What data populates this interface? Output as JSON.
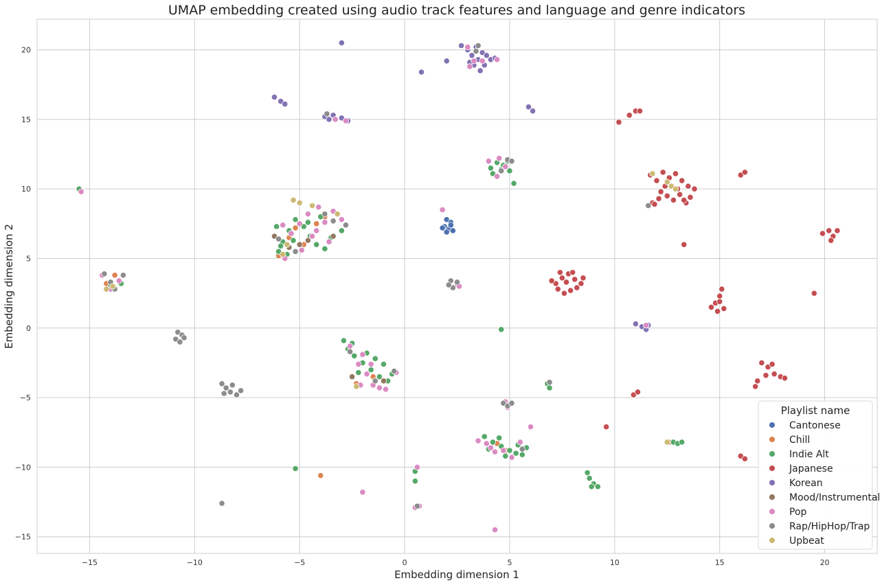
{
  "chart_data": {
    "type": "scatter",
    "title": "UMAP embedding created using audio track features and language and genre indicators",
    "xlabel": "Embedding dimension 1",
    "ylabel": "Embedding dimension 2",
    "xlim": [
      -17.5,
      22.5
    ],
    "ylim": [
      -16.2,
      22.2
    ],
    "xticks": [
      -15,
      -10,
      -5,
      0,
      5,
      10,
      15,
      20
    ],
    "yticks": [
      -15,
      -10,
      -5,
      0,
      5,
      10,
      15,
      20
    ],
    "xtick_labels": [
      "−15",
      "−10",
      "−5",
      "0",
      "5",
      "10",
      "15",
      "20"
    ],
    "ytick_labels": [
      "−15",
      "−10",
      "−5",
      "0",
      "5",
      "10",
      "15",
      "20"
    ],
    "grid": true,
    "legend": {
      "title": "Playlist name",
      "position": "lower-right"
    },
    "series": [
      {
        "name": "Cantonese",
        "color": "#4c72b0",
        "points": [
          [
            2.0,
            7.8
          ],
          [
            2.2,
            7.6
          ],
          [
            1.9,
            7.3
          ],
          [
            2.1,
            7.1
          ],
          [
            2.3,
            7.0
          ],
          [
            2.0,
            6.9
          ],
          [
            2.2,
            7.4
          ],
          [
            1.8,
            7.2
          ]
        ]
      },
      {
        "name": "Chill",
        "color": "#dd8452",
        "points": [
          [
            -5.5,
            6.5
          ],
          [
            -4.8,
            6.0
          ],
          [
            -5.2,
            7.2
          ],
          [
            -4.2,
            7.5
          ],
          [
            -3.8,
            8.0
          ],
          [
            -6.0,
            5.2
          ],
          [
            -13.8,
            3.8
          ],
          [
            -14.2,
            3.2
          ],
          [
            -4.0,
            -10.6
          ],
          [
            -2.3,
            -4.0
          ],
          [
            -1.5,
            -3.5
          ],
          [
            4.8,
            -8.8
          ],
          [
            4.4,
            -8.3
          ],
          [
            12.6,
            -8.2
          ]
        ]
      },
      {
        "name": "Indie Alt",
        "color": "#55a868",
        "points": [
          [
            -15.5,
            10.0
          ],
          [
            -6.0,
            5.5
          ],
          [
            -5.8,
            6.2
          ],
          [
            -5.5,
            7.0
          ],
          [
            -5.2,
            7.8
          ],
          [
            -4.8,
            7.3
          ],
          [
            -4.5,
            6.6
          ],
          [
            -4.2,
            6.0
          ],
          [
            -3.8,
            5.7
          ],
          [
            -3.5,
            6.5
          ],
          [
            -3.0,
            7.0
          ],
          [
            -5.9,
            5.9
          ],
          [
            -5.6,
            5.3
          ],
          [
            -4.6,
            7.6
          ],
          [
            -4.0,
            8.0
          ],
          [
            -6.1,
            7.3
          ],
          [
            -5.3,
            6.3
          ],
          [
            -2.9,
            -0.9
          ],
          [
            -2.7,
            -1.5
          ],
          [
            -2.4,
            -2.0
          ],
          [
            -2.0,
            -2.5
          ],
          [
            -1.6,
            -3.0
          ],
          [
            -1.2,
            -3.5
          ],
          [
            -0.8,
            -3.8
          ],
          [
            -1.8,
            -1.8
          ],
          [
            -1.4,
            -2.2
          ],
          [
            -2.2,
            -3.2
          ],
          [
            -1.0,
            -2.6
          ],
          [
            -0.6,
            -3.3
          ],
          [
            -2.5,
            -1.1
          ],
          [
            3.8,
            -7.8
          ],
          [
            4.2,
            -8.2
          ],
          [
            4.6,
            -8.5
          ],
          [
            5.0,
            -8.8
          ],
          [
            5.4,
            -8.4
          ],
          [
            5.8,
            -8.6
          ],
          [
            4.0,
            -8.7
          ],
          [
            4.8,
            -9.2
          ],
          [
            5.3,
            -9.0
          ],
          [
            4.5,
            -7.9
          ],
          [
            5.6,
            -9.1
          ],
          [
            4.1,
            11.5
          ],
          [
            4.4,
            11.9
          ],
          [
            4.6,
            11.4
          ],
          [
            4.9,
            12.0
          ],
          [
            4.2,
            11.1
          ],
          [
            4.7,
            11.7
          ],
          [
            5.0,
            11.3
          ],
          [
            5.2,
            10.4
          ],
          [
            4.6,
            -0.1
          ],
          [
            6.8,
            -4.0
          ],
          [
            6.9,
            -4.3
          ],
          [
            8.7,
            -10.4
          ],
          [
            8.8,
            -10.8
          ],
          [
            9.0,
            -11.2
          ],
          [
            8.9,
            -11.4
          ],
          [
            9.2,
            -11.4
          ],
          [
            12.8,
            -8.2
          ],
          [
            13.0,
            -8.3
          ],
          [
            13.2,
            -8.2
          ],
          [
            -5.2,
            -10.1
          ],
          [
            0.5,
            -10.3
          ],
          [
            0.5,
            -11.0
          ],
          [
            -14.0,
            3.0
          ],
          [
            -13.5,
            3.2
          ]
        ]
      },
      {
        "name": "Japanese",
        "color": "#c44e52",
        "points": [
          [
            11.7,
            11.0
          ],
          [
            12.0,
            10.6
          ],
          [
            12.3,
            11.2
          ],
          [
            12.6,
            10.8
          ],
          [
            12.9,
            11.1
          ],
          [
            13.2,
            10.6
          ],
          [
            13.5,
            10.2
          ],
          [
            13.8,
            10.0
          ],
          [
            12.2,
            9.8
          ],
          [
            12.5,
            9.5
          ],
          [
            12.8,
            9.2
          ],
          [
            13.1,
            9.6
          ],
          [
            13.4,
            9.0
          ],
          [
            11.8,
            9.0
          ],
          [
            12.1,
            9.3
          ],
          [
            13.6,
            9.4
          ],
          [
            12.4,
            10.2
          ],
          [
            13.0,
            10.0
          ],
          [
            11.9,
            8.9
          ],
          [
            13.3,
            9.2
          ],
          [
            7.2,
            3.2
          ],
          [
            7.5,
            3.6
          ],
          [
            7.8,
            3.9
          ],
          [
            8.1,
            3.5
          ],
          [
            8.4,
            3.2
          ],
          [
            7.3,
            2.8
          ],
          [
            7.6,
            2.5
          ],
          [
            7.9,
            2.7
          ],
          [
            8.2,
            2.9
          ],
          [
            7.0,
            3.4
          ],
          [
            8.5,
            3.6
          ],
          [
            7.7,
            3.3
          ],
          [
            8.0,
            4.0
          ],
          [
            7.4,
            4.0
          ],
          [
            14.6,
            1.5
          ],
          [
            14.8,
            1.8
          ],
          [
            15.0,
            2.3
          ],
          [
            15.1,
            2.8
          ],
          [
            15.2,
            1.4
          ],
          [
            14.9,
            1.2
          ],
          [
            15.0,
            1.9
          ],
          [
            19.9,
            6.8
          ],
          [
            20.2,
            7.0
          ],
          [
            20.4,
            6.6
          ],
          [
            20.3,
            6.3
          ],
          [
            20.6,
            7.0
          ],
          [
            17.0,
            -2.5
          ],
          [
            17.3,
            -2.8
          ],
          [
            17.6,
            -3.3
          ],
          [
            17.9,
            -3.5
          ],
          [
            18.1,
            -3.6
          ],
          [
            17.2,
            -3.4
          ],
          [
            16.8,
            -3.8
          ],
          [
            16.7,
            -4.2
          ],
          [
            17.5,
            -2.6
          ],
          [
            10.2,
            14.8
          ],
          [
            10.7,
            15.3
          ],
          [
            11.0,
            15.6
          ],
          [
            11.2,
            15.6
          ],
          [
            16.0,
            11.0
          ],
          [
            16.2,
            11.2
          ],
          [
            10.9,
            -4.8
          ],
          [
            11.1,
            -4.6
          ],
          [
            13.3,
            6.0
          ],
          [
            19.5,
            2.5
          ],
          [
            9.6,
            -7.1
          ],
          [
            16.0,
            -9.2
          ],
          [
            16.2,
            -9.4
          ]
        ]
      },
      {
        "name": "Korean",
        "color": "#8172b3",
        "points": [
          [
            3.0,
            20.0
          ],
          [
            3.2,
            19.6
          ],
          [
            3.4,
            20.2
          ],
          [
            3.5,
            19.3
          ],
          [
            3.7,
            19.8
          ],
          [
            3.9,
            19.6
          ],
          [
            4.1,
            19.3
          ],
          [
            4.3,
            19.4
          ],
          [
            3.3,
            18.9
          ],
          [
            3.6,
            18.5
          ],
          [
            3.8,
            18.9
          ],
          [
            3.1,
            19.1
          ],
          [
            2.7,
            20.3
          ],
          [
            -3.0,
            20.5
          ],
          [
            0.8,
            18.4
          ],
          [
            2.0,
            19.2
          ],
          [
            -6.2,
            16.6
          ],
          [
            -5.9,
            16.3
          ],
          [
            -5.7,
            16.1
          ],
          [
            -3.8,
            15.2
          ],
          [
            -3.4,
            15.3
          ],
          [
            -3.0,
            15.1
          ],
          [
            -2.7,
            14.9
          ],
          [
            -3.6,
            15.0
          ],
          [
            5.9,
            15.9
          ],
          [
            6.1,
            15.6
          ],
          [
            11.0,
            0.3
          ],
          [
            11.3,
            0.1
          ],
          [
            11.5,
            -0.1
          ],
          [
            11.6,
            0.2
          ]
        ]
      },
      {
        "name": "Mood/Instrumental",
        "color": "#937860",
        "points": [
          [
            -5.5,
            5.8
          ],
          [
            -5.0,
            6.0
          ],
          [
            -4.6,
            6.3
          ],
          [
            -3.4,
            6.6
          ],
          [
            -6.2,
            6.6
          ],
          [
            -2.5,
            -3.5
          ],
          [
            -1.0,
            -3.8
          ]
        ]
      },
      {
        "name": "Pop",
        "color": "#da8bc3",
        "points": [
          [
            -5.8,
            7.4
          ],
          [
            -5.4,
            6.8
          ],
          [
            -5.0,
            7.5
          ],
          [
            -4.6,
            8.2
          ],
          [
            -4.2,
            7.0
          ],
          [
            -3.8,
            7.6
          ],
          [
            -3.4,
            8.4
          ],
          [
            -3.0,
            7.8
          ],
          [
            -4.9,
            5.6
          ],
          [
            -4.4,
            6.6
          ],
          [
            -5.7,
            5.0
          ],
          [
            -3.6,
            6.2
          ],
          [
            -4.1,
            8.7
          ],
          [
            -2.6,
            -1.3
          ],
          [
            -2.0,
            -1.9
          ],
          [
            -1.6,
            -2.6
          ],
          [
            -1.2,
            -4.3
          ],
          [
            -0.9,
            -4.4
          ],
          [
            -1.5,
            -4.1
          ],
          [
            -0.4,
            -3.2
          ],
          [
            -1.8,
            -3.3
          ],
          [
            -2.2,
            -2.6
          ],
          [
            -2.1,
            -4.1
          ],
          [
            3.5,
            -8.1
          ],
          [
            3.9,
            -8.3
          ],
          [
            4.3,
            -8.9
          ],
          [
            4.7,
            -8.8
          ],
          [
            5.5,
            -8.2
          ],
          [
            4.1,
            -8.6
          ],
          [
            5.1,
            -9.3
          ],
          [
            4.0,
            12.0
          ],
          [
            4.5,
            12.2
          ],
          [
            4.8,
            11.6
          ],
          [
            4.4,
            10.9
          ],
          [
            3.0,
            20.2
          ],
          [
            3.3,
            19.2
          ],
          [
            3.1,
            18.8
          ],
          [
            3.7,
            19.2
          ],
          [
            4.4,
            19.3
          ],
          [
            -3.3,
            15.0
          ],
          [
            -2.8,
            14.9
          ],
          [
            4.8,
            -5.3
          ],
          [
            5.0,
            -5.5
          ],
          [
            4.9,
            -5.7
          ],
          [
            6.0,
            -7.1
          ],
          [
            0.6,
            -10.0
          ],
          [
            0.5,
            -12.9
          ],
          [
            0.7,
            -12.8
          ],
          [
            -2.0,
            -11.8
          ],
          [
            -15.4,
            9.8
          ],
          [
            -14.0,
            2.8
          ],
          [
            -13.6,
            3.4
          ],
          [
            -14.4,
            3.8
          ],
          [
            4.3,
            -14.5
          ],
          [
            1.8,
            8.5
          ],
          [
            2.5,
            3.1
          ],
          [
            2.6,
            3.0
          ],
          [
            11.5,
            0.2
          ]
        ]
      },
      {
        "name": "Rap/HipHop/Trap",
        "color": "#8c8c8c",
        "points": [
          [
            -10.8,
            -0.3
          ],
          [
            -10.6,
            -0.5
          ],
          [
            -10.9,
            -0.8
          ],
          [
            -10.7,
            -1.0
          ],
          [
            -10.5,
            -0.7
          ],
          [
            -8.7,
            -4.0
          ],
          [
            -8.5,
            -4.3
          ],
          [
            -8.3,
            -4.6
          ],
          [
            -8.0,
            -4.8
          ],
          [
            -7.8,
            -4.5
          ],
          [
            -8.6,
            -4.7
          ],
          [
            -8.2,
            -4.1
          ],
          [
            -8.7,
            -12.6
          ],
          [
            -14.3,
            3.9
          ],
          [
            -14.0,
            3.3
          ],
          [
            -13.8,
            2.8
          ],
          [
            -13.4,
            3.8
          ],
          [
            -3.8,
            8.2
          ],
          [
            -3.4,
            7.7
          ],
          [
            -2.8,
            7.4
          ],
          [
            -5.2,
            5.5
          ],
          [
            -6.0,
            6.4
          ],
          [
            2.2,
            3.4
          ],
          [
            2.3,
            2.9
          ],
          [
            2.5,
            3.3
          ],
          [
            2.1,
            3.1
          ],
          [
            4.7,
            -5.4
          ],
          [
            4.9,
            -5.6
          ],
          [
            5.1,
            -5.4
          ],
          [
            3.4,
            19.9
          ],
          [
            3.5,
            20.3
          ],
          [
            4.6,
            11.3
          ],
          [
            4.9,
            12.1
          ],
          [
            5.1,
            12.0
          ],
          [
            -1.4,
            -3.8
          ],
          [
            -2.6,
            -1.7
          ],
          [
            -0.5,
            -3.1
          ],
          [
            0.6,
            -12.8
          ],
          [
            -3.7,
            15.4
          ],
          [
            11.6,
            8.8
          ],
          [
            5.6,
            -8.7
          ],
          [
            6.9,
            -3.9
          ]
        ]
      },
      {
        "name": "Upbeat",
        "color": "#ccb974",
        "points": [
          [
            -5.3,
            9.2
          ],
          [
            -5.0,
            9.0
          ],
          [
            -4.4,
            8.8
          ],
          [
            -5.8,
            5.3
          ],
          [
            -5.6,
            6.0
          ],
          [
            -3.2,
            8.2
          ],
          [
            -14.2,
            2.8
          ],
          [
            -13.9,
            3.0
          ],
          [
            12.5,
            10.5
          ],
          [
            12.7,
            10.2
          ],
          [
            11.8,
            11.1
          ],
          [
            12.9,
            10.0
          ],
          [
            12.5,
            -8.2
          ],
          [
            -2.3,
            -4.2
          ]
        ]
      }
    ]
  }
}
